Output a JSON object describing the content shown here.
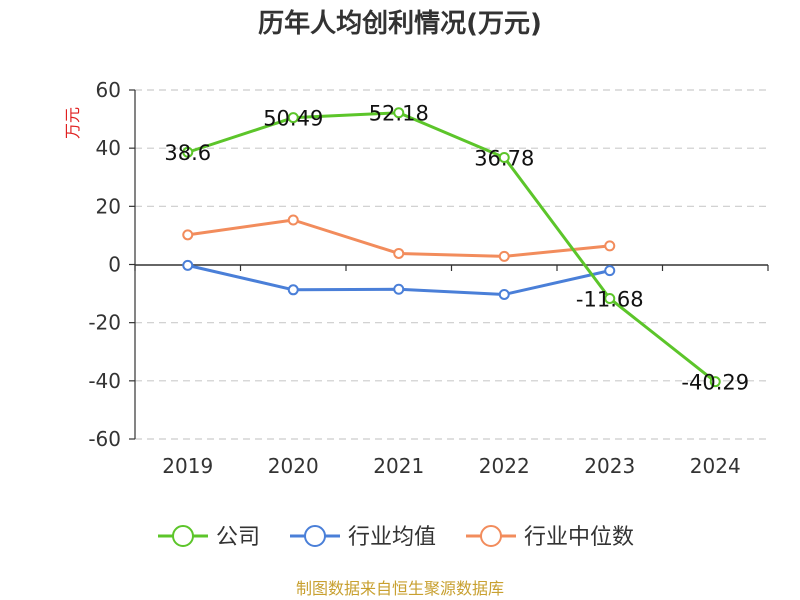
{
  "chart_data": {
    "type": "line",
    "title": "历年人均创利情况(万元)",
    "ylabel": "万元",
    "categories": [
      "2019",
      "2020",
      "2021",
      "2022",
      "2023",
      "2024"
    ],
    "yticks": [
      "60",
      "40",
      "20",
      "0",
      "-20",
      "-40",
      "-60"
    ],
    "ylim": [
      -60,
      60
    ],
    "grid": true,
    "legend_position": "bottom",
    "series": [
      {
        "name": "公司",
        "color": "#5cc52a",
        "values": [
          38.6,
          50.49,
          52.18,
          36.78,
          -11.68,
          -40.29
        ],
        "labels": [
          "38.6",
          "50.49",
          "52.18",
          "36.78",
          "-11.68",
          "-40.29"
        ]
      },
      {
        "name": "行业均值",
        "color": "#4a7fd8",
        "values": [
          -0.3,
          -8.7,
          -8.5,
          -10.3,
          -2.1,
          null
        ]
      },
      {
        "name": "行业中位数",
        "color": "#f28c5c",
        "values": [
          10.2,
          15.3,
          3.8,
          2.8,
          6.4,
          null
        ]
      }
    ],
    "source": "制图数据来自恒生聚源数据库"
  }
}
